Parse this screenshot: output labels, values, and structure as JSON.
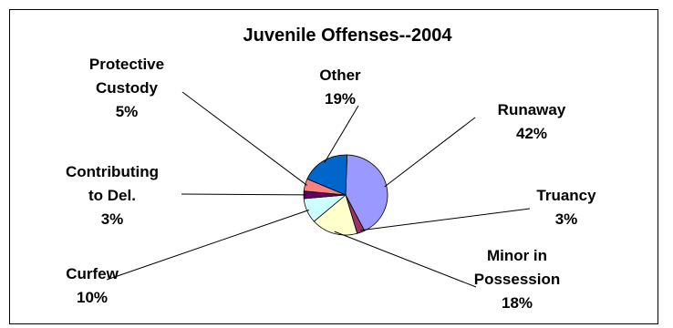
{
  "chart_data": {
    "type": "pie",
    "title": "Juvenile Offenses--2004",
    "slices": [
      {
        "label": [
          "Runaway"
        ],
        "value": 42,
        "pct_label": "42%",
        "color": "#9999ff"
      },
      {
        "label": [
          "Truancy"
        ],
        "value": 3,
        "pct_label": "3%",
        "color": "#993366"
      },
      {
        "label": [
          "Minor in",
          "Possession"
        ],
        "value": 18,
        "pct_label": "18%",
        "color": "#ffffcc"
      },
      {
        "label": [
          "Curfew"
        ],
        "value": 10,
        "pct_label": "10%",
        "color": "#ccffff"
      },
      {
        "label": [
          "Contributing",
          "to Del."
        ],
        "value": 3,
        "pct_label": "3%",
        "color": "#660066"
      },
      {
        "label": [
          "Protective",
          "Custody"
        ],
        "value": 5,
        "pct_label": "5%",
        "color": "#ff8080"
      },
      {
        "label": [
          "Other"
        ],
        "value": 19,
        "pct_label": "19%",
        "color": "#0066cc"
      }
    ]
  }
}
